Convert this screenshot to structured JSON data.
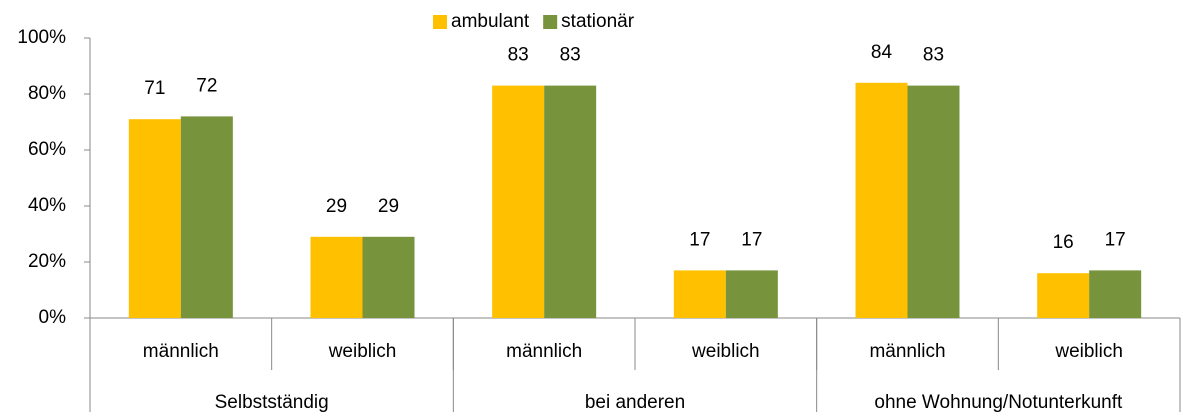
{
  "chart_data": {
    "type": "bar",
    "categories": [
      "männlich",
      "weiblich",
      "männlich",
      "weiblich",
      "männlich",
      "weiblich"
    ],
    "groups": [
      "Selbstständig",
      "bei anderen",
      "ohne Wohnung/Notunterkunft"
    ],
    "series": [
      {
        "name": "ambulant",
        "color": "#FFC000",
        "values": [
          71,
          29,
          83,
          17,
          84,
          16
        ]
      },
      {
        "name": "stationär",
        "color": "#77933C",
        "values": [
          72,
          29,
          83,
          17,
          83,
          17
        ]
      }
    ],
    "ylim": [
      0,
      100
    ],
    "yticks": [
      {
        "value": 0,
        "label": "0%"
      },
      {
        "value": 20,
        "label": "20%"
      },
      {
        "value": 40,
        "label": "40%"
      },
      {
        "value": 60,
        "label": "60%"
      },
      {
        "value": 80,
        "label": "80%"
      },
      {
        "value": 100,
        "label": "100%"
      }
    ],
    "legend": "top"
  }
}
